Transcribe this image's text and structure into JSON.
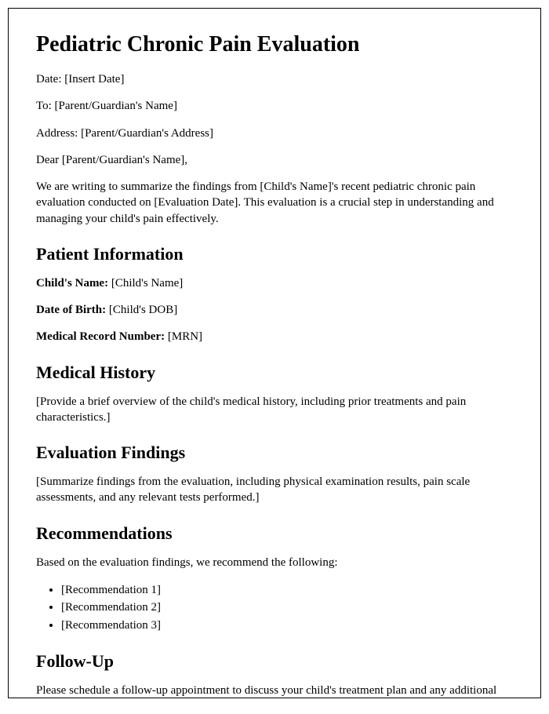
{
  "title": "Pediatric Chronic Pain Evaluation",
  "header": {
    "date_label": "Date: ",
    "date_value": "[Insert Date]",
    "to_label": "To: ",
    "to_value": "[Parent/Guardian's Name]",
    "address_label": "Address: ",
    "address_value": "[Parent/Guardian's Address]",
    "salutation": "Dear [Parent/Guardian's Name],",
    "intro": "We are writing to summarize the findings from [Child's Name]'s recent pediatric chronic pain evaluation conducted on [Evaluation Date]. This evaluation is a crucial step in understanding and managing your child's pain effectively."
  },
  "patient_info": {
    "heading": "Patient Information",
    "name_label": "Child's Name: ",
    "name_value": "[Child's Name]",
    "dob_label": "Date of Birth: ",
    "dob_value": "[Child's DOB]",
    "mrn_label": "Medical Record Number: ",
    "mrn_value": "[MRN]"
  },
  "medical_history": {
    "heading": "Medical History",
    "body": "[Provide a brief overview of the child's medical history, including prior treatments and pain characteristics.]"
  },
  "evaluation_findings": {
    "heading": "Evaluation Findings",
    "body": "[Summarize findings from the evaluation, including physical examination results, pain scale assessments, and any relevant tests performed.]"
  },
  "recommendations": {
    "heading": "Recommendations",
    "intro": "Based on the evaluation findings, we recommend the following:",
    "items": [
      "[Recommendation 1]",
      "[Recommendation 2]",
      "[Recommendation 3]"
    ]
  },
  "follow_up": {
    "heading": "Follow-Up",
    "body": "Please schedule a follow-up appointment to discuss your child's treatment plan and any additional questions you may have. Our office will be in contact to arrange a suitable time."
  }
}
